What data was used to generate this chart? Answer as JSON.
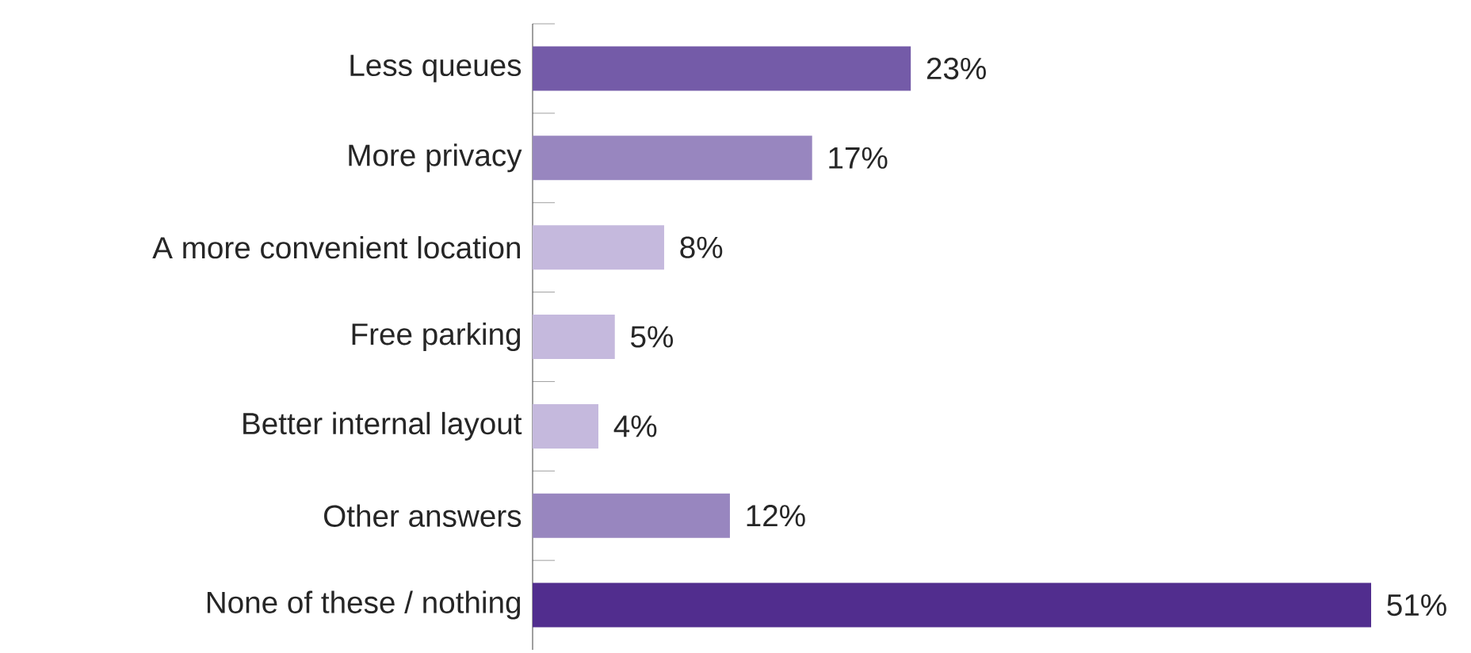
{
  "chart_data": {
    "type": "bar",
    "orientation": "horizontal",
    "categories": [
      "Less queues",
      "More privacy",
      "A more convenient location",
      "Free parking",
      "Better internal layout",
      "Other answers",
      "None of these / nothing"
    ],
    "values": [
      23,
      17,
      8,
      5,
      4,
      12,
      51
    ],
    "value_labels": [
      "23%",
      "17%",
      "8%",
      "5%",
      "4%",
      "12%",
      "51%"
    ],
    "colors": [
      "#745ba8",
      "#9886bf",
      "#c5b9dd",
      "#c5b9dd",
      "#c5b9dd",
      "#9886bf",
      "#512d8e"
    ],
    "data_labels": true
  }
}
